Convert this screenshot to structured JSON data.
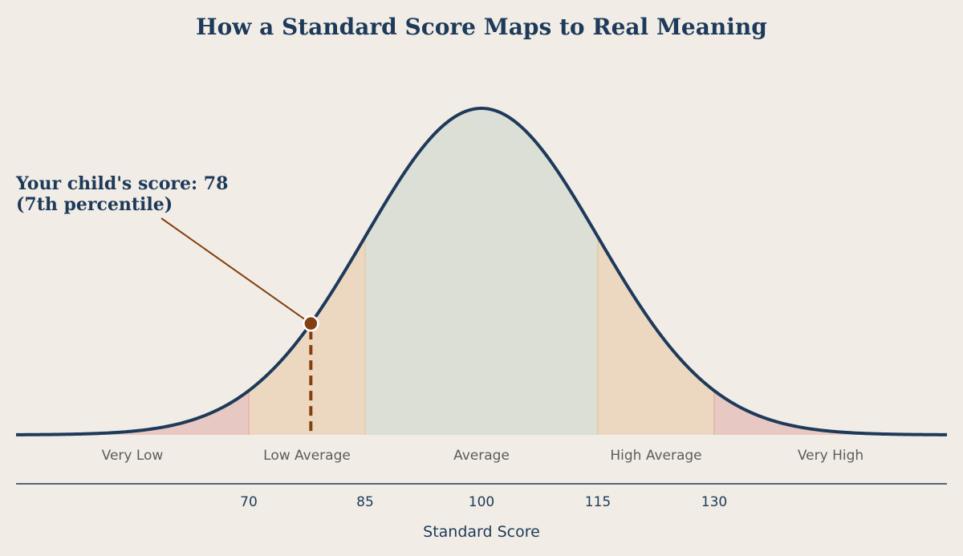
{
  "chart_data": {
    "type": "area",
    "title": "How a Standard Score Maps to Real Meaning",
    "xlabel": "Standard Score",
    "ylabel": "",
    "xlim": [
      40,
      160
    ],
    "distribution": {
      "kind": "normal",
      "mean": 100,
      "sd": 15
    },
    "xticks": [
      70,
      85,
      100,
      115,
      130
    ],
    "bands": [
      {
        "label": "Very Low",
        "from": 40,
        "to": 70,
        "label_at": 55,
        "color": "#e8c8c3"
      },
      {
        "label": "Low Average",
        "from": 70,
        "to": 85,
        "label_at": 77.5,
        "color": "#ecd8c0"
      },
      {
        "label": "Average",
        "from": 85,
        "to": 115,
        "label_at": 100,
        "color": "#dcdfd6"
      },
      {
        "label": "High Average",
        "from": 115,
        "to": 130,
        "label_at": 122.5,
        "color": "#ecd8c0"
      },
      {
        "label": "Very High",
        "from": 130,
        "to": 160,
        "label_at": 145,
        "color": "#e8c8c3"
      }
    ],
    "marker": {
      "score": 78,
      "annotation_line1": "Your child's score: 78",
      "annotation_line2": "(7th percentile)",
      "color": "#843f10"
    },
    "curve_color": "#1e3a5a",
    "grid": false,
    "legend": "none"
  }
}
